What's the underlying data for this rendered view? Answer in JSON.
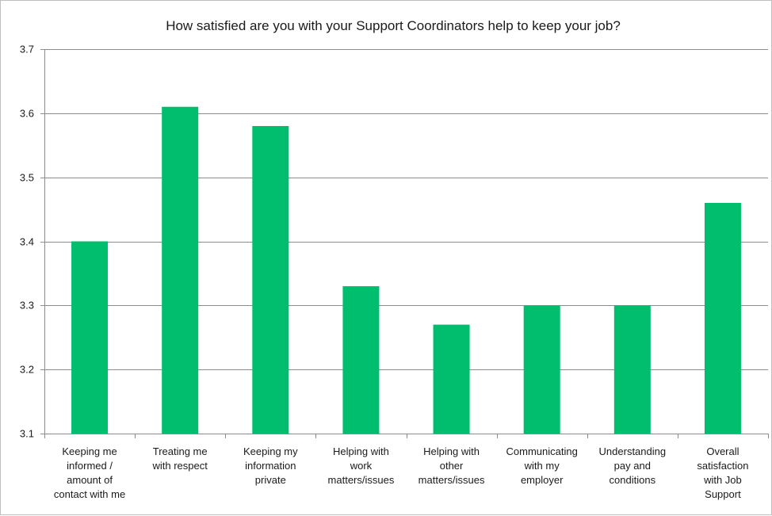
{
  "chart_data": {
    "type": "bar",
    "title": "How satisfied are you with your Support Coordinators help to keep your job?",
    "xlabel": "",
    "ylabel": "",
    "ylim": [
      3.1,
      3.7
    ],
    "yticks": [
      "3.1",
      "3.2",
      "3.3",
      "3.4",
      "3.5",
      "3.6",
      "3.7"
    ],
    "grid": true,
    "legend": "none",
    "categories": [
      [
        "Keeping me",
        "informed /",
        "amount of",
        "contact with me"
      ],
      [
        "Treating me",
        "with respect"
      ],
      [
        "Keeping my",
        "information",
        "private"
      ],
      [
        "Helping with",
        "work",
        "matters/issues"
      ],
      [
        "Helping with",
        "other",
        "matters/issues"
      ],
      [
        "Communicating",
        "with my",
        "employer"
      ],
      [
        "Understanding",
        "pay and",
        "conditions"
      ],
      [
        "Overall",
        "satisfaction",
        "with Job",
        "Support"
      ]
    ],
    "values": [
      3.4,
      3.61,
      3.58,
      3.33,
      3.27,
      3.3,
      3.3,
      3.46
    ],
    "colors": {
      "bar": "#00be6e",
      "grid": "#8c8c8c",
      "axis": "#8c8c8c"
    }
  }
}
